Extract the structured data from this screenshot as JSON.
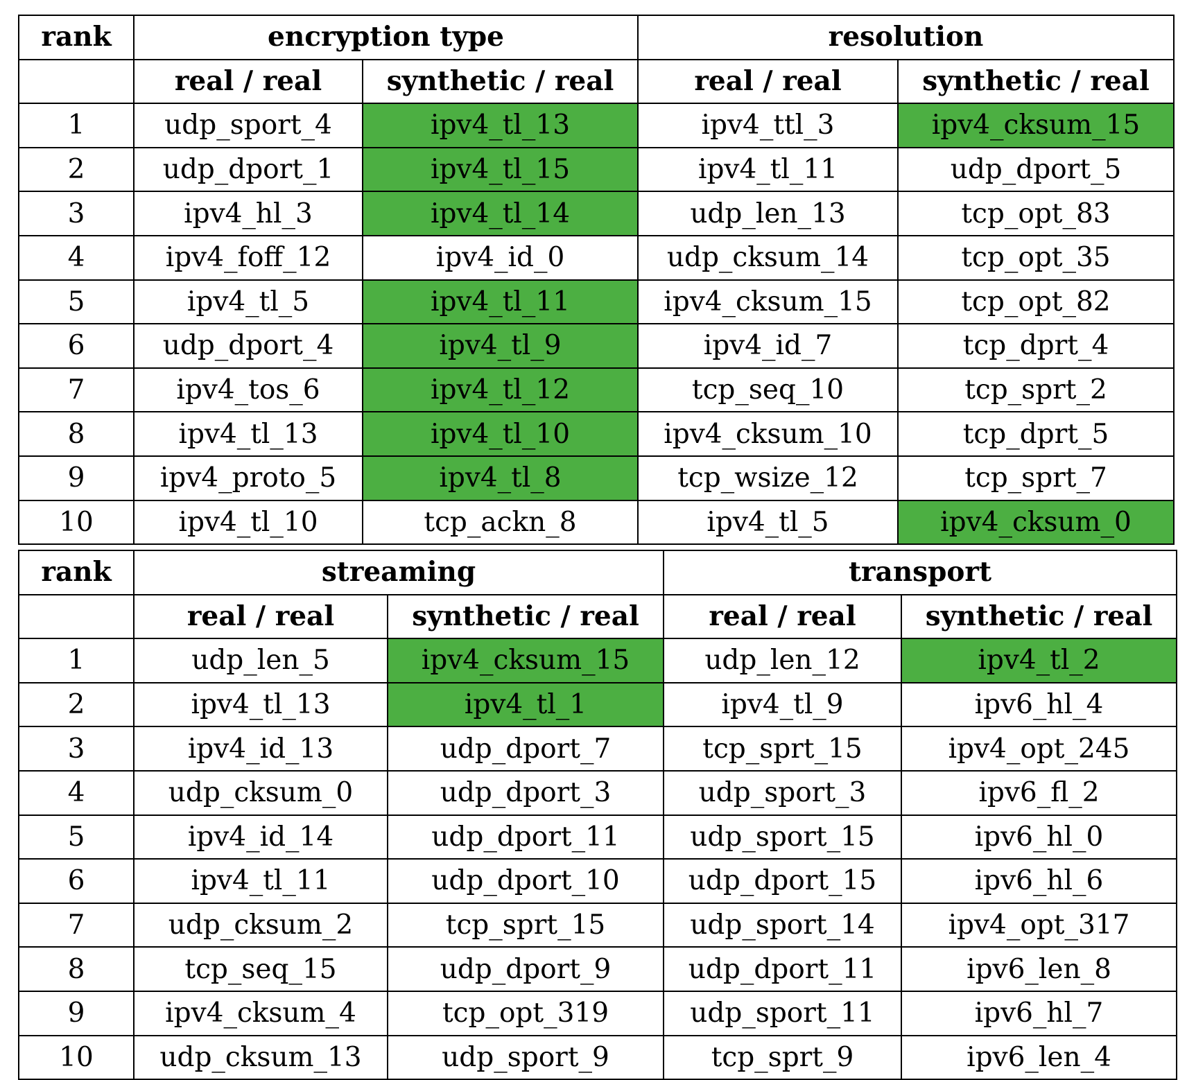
{
  "colors": {
    "highlight": "#4caf42",
    "border": "#000000",
    "background": "#ffffff"
  },
  "tables": [
    {
      "rank_header": "rank",
      "group_a": "encryption type",
      "group_b": "resolution",
      "sub_a1": "real / real",
      "sub_a2": "synthetic / real",
      "sub_b1": "real / real",
      "sub_b2": "synthetic / real",
      "rows": [
        {
          "rank": "1",
          "a1": "udp_sport_4",
          "a2": "ipv4_tl_13",
          "b1": "ipv4_ttl_3",
          "b2": "ipv4_cksum_15"
        },
        {
          "rank": "2",
          "a1": "udp_dport_1",
          "a2": "ipv4_tl_15",
          "b1": "ipv4_tl_11",
          "b2": "udp_dport_5"
        },
        {
          "rank": "3",
          "a1": "ipv4_hl_3",
          "a2": "ipv4_tl_14",
          "b1": "udp_len_13",
          "b2": "tcp_opt_83"
        },
        {
          "rank": "4",
          "a1": "ipv4_foff_12",
          "a2": "ipv4_id_0",
          "b1": "udp_cksum_14",
          "b2": "tcp_opt_35"
        },
        {
          "rank": "5",
          "a1": "ipv4_tl_5",
          "a2": "ipv4_tl_11",
          "b1": "ipv4_cksum_15",
          "b2": "tcp_opt_82"
        },
        {
          "rank": "6",
          "a1": "udp_dport_4",
          "a2": "ipv4_tl_9",
          "b1": "ipv4_id_7",
          "b2": "tcp_dprt_4"
        },
        {
          "rank": "7",
          "a1": "ipv4_tos_6",
          "a2": "ipv4_tl_12",
          "b1": "tcp_seq_10",
          "b2": "tcp_sprt_2"
        },
        {
          "rank": "8",
          "a1": "ipv4_tl_13",
          "a2": "ipv4_tl_10",
          "b1": "ipv4_cksum_10",
          "b2": "tcp_dprt_5"
        },
        {
          "rank": "9",
          "a1": "ipv4_proto_5",
          "a2": "ipv4_tl_8",
          "b1": "tcp_wsize_12",
          "b2": "tcp_sprt_7"
        },
        {
          "rank": "10",
          "a1": "ipv4_tl_10",
          "a2": "tcp_ackn_8",
          "b1": "ipv4_tl_5",
          "b2": "ipv4_cksum_0"
        }
      ]
    },
    {
      "rank_header": "rank",
      "group_a": "streaming",
      "group_b": "transport",
      "sub_a1": "real / real",
      "sub_a2": "synthetic / real",
      "sub_b1": "real / real",
      "sub_b2": "synthetic / real",
      "rows": [
        {
          "rank": "1",
          "a1": "udp_len_5",
          "a2": "ipv4_cksum_15",
          "b1": "udp_len_12",
          "b2": "ipv4_tl_2"
        },
        {
          "rank": "2",
          "a1": "ipv4_tl_13",
          "a2": "ipv4_tl_1",
          "b1": "ipv4_tl_9",
          "b2": "ipv6_hl_4"
        },
        {
          "rank": "3",
          "a1": "ipv4_id_13",
          "a2": "udp_dport_7",
          "b1": "tcp_sprt_15",
          "b2": "ipv4_opt_245"
        },
        {
          "rank": "4",
          "a1": "udp_cksum_0",
          "a2": "udp_dport_3",
          "b1": "udp_sport_3",
          "b2": "ipv6_fl_2"
        },
        {
          "rank": "5",
          "a1": "ipv4_id_14",
          "a2": "udp_dport_11",
          "b1": "udp_sport_15",
          "b2": "ipv6_hl_0"
        },
        {
          "rank": "6",
          "a1": "ipv4_tl_11",
          "a2": "udp_dport_10",
          "b1": "udp_dport_15",
          "b2": "ipv6_hl_6"
        },
        {
          "rank": "7",
          "a1": "udp_cksum_2",
          "a2": "tcp_sprt_15",
          "b1": "udp_sport_14",
          "b2": "ipv4_opt_317"
        },
        {
          "rank": "8",
          "a1": "tcp_seq_15",
          "a2": "udp_dport_9",
          "b1": "udp_dport_11",
          "b2": "ipv6_len_8"
        },
        {
          "rank": "9",
          "a1": "ipv4_cksum_4",
          "a2": "tcp_opt_319",
          "b1": "udp_sport_11",
          "b2": "ipv6_hl_7"
        },
        {
          "rank": "10",
          "a1": "udp_cksum_13",
          "a2": "udp_sport_9",
          "b1": "tcp_sprt_9",
          "b2": "ipv6_len_4"
        }
      ]
    }
  ]
}
